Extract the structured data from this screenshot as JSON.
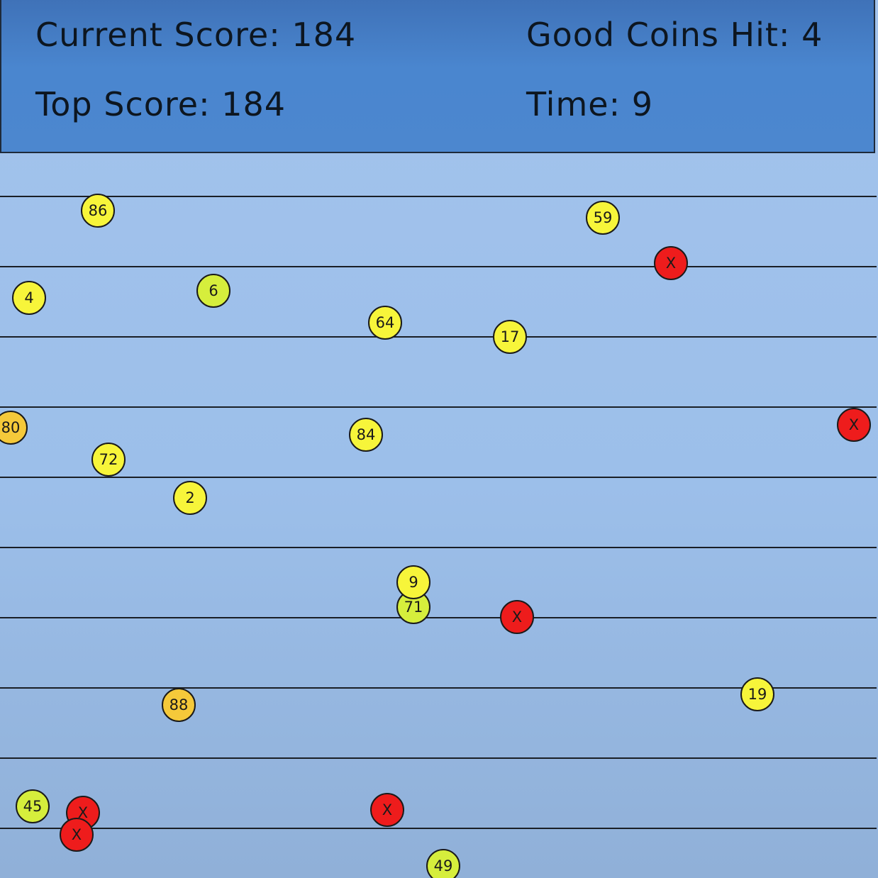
{
  "hud": {
    "current_score": "Current Score: 184",
    "top_score": "Top Score: 184",
    "good_coins_hit": "Good Coins Hit: 4",
    "time": "Time: 9"
  },
  "colors": {
    "yellow_coin": "#f7f53a",
    "lime_coin": "#d6ee3c",
    "orange_coin": "#f5c93a",
    "red_coin": "#ee1c1c"
  },
  "coins": [
    {
      "label": "86",
      "kind": "yellow"
    },
    {
      "label": "59",
      "kind": "yellow"
    },
    {
      "label": "X",
      "kind": "red"
    },
    {
      "label": "4",
      "kind": "yellow"
    },
    {
      "label": "6",
      "kind": "lime"
    },
    {
      "label": "64",
      "kind": "yellow"
    },
    {
      "label": "17",
      "kind": "yellow"
    },
    {
      "label": "80",
      "kind": "orange"
    },
    {
      "label": "84",
      "kind": "yellow"
    },
    {
      "label": "X",
      "kind": "red"
    },
    {
      "label": "72",
      "kind": "yellow"
    },
    {
      "label": "2",
      "kind": "yellow"
    },
    {
      "label": "71",
      "kind": "lime"
    },
    {
      "label": "9",
      "kind": "yellow"
    },
    {
      "label": "X",
      "kind": "red"
    },
    {
      "label": "88",
      "kind": "orange"
    },
    {
      "label": "19",
      "kind": "yellow"
    },
    {
      "label": "45",
      "kind": "lime"
    },
    {
      "label": "X",
      "kind": "red"
    },
    {
      "label": "X",
      "kind": "red"
    },
    {
      "label": "X",
      "kind": "red"
    },
    {
      "label": "49",
      "kind": "lime"
    }
  ]
}
